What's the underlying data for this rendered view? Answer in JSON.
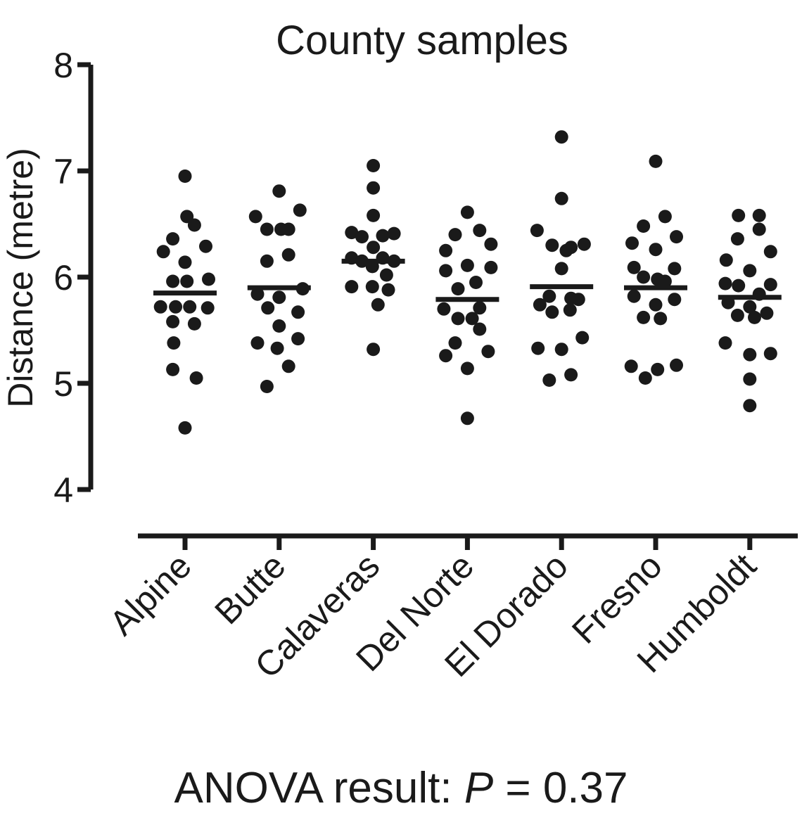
{
  "chart_data": {
    "type": "scatter",
    "title": "County samples",
    "ylabel": "Distance (metre)",
    "xlabel": "",
    "ylim": [
      4,
      8
    ],
    "yticks": [
      4,
      5,
      6,
      7,
      8
    ],
    "grid": false,
    "categories": [
      "Alpine",
      "Butte",
      "Calaveras",
      "Del Norte",
      "El Dorado",
      "Fresno",
      "Humboldt"
    ],
    "series": [
      {
        "category": "Alpine",
        "mean": 5.85,
        "points": [
          [
            0.0,
            6.95
          ],
          [
            0.02,
            6.57
          ],
          [
            0.1,
            6.49
          ],
          [
            -0.13,
            6.36
          ],
          [
            0.22,
            6.29
          ],
          [
            -0.23,
            6.24
          ],
          [
            0.0,
            6.14
          ],
          [
            -0.13,
            5.96
          ],
          [
            0.02,
            5.96
          ],
          [
            0.25,
            5.98
          ],
          [
            -0.26,
            5.72
          ],
          [
            -0.1,
            5.72
          ],
          [
            0.05,
            5.72
          ],
          [
            0.24,
            5.71
          ],
          [
            -0.13,
            5.58
          ],
          [
            0.1,
            5.56
          ],
          [
            -0.12,
            5.38
          ],
          [
            -0.13,
            5.13
          ],
          [
            0.12,
            5.05
          ],
          [
            0.0,
            4.58
          ]
        ]
      },
      {
        "category": "Butte",
        "mean": 5.9,
        "points": [
          [
            0.0,
            6.81
          ],
          [
            -0.25,
            6.57
          ],
          [
            0.22,
            6.63
          ],
          [
            -0.13,
            6.45
          ],
          [
            0.02,
            6.45
          ],
          [
            0.1,
            6.45
          ],
          [
            0.1,
            6.21
          ],
          [
            -0.13,
            6.15
          ],
          [
            -0.23,
            5.84
          ],
          [
            0.0,
            5.81
          ],
          [
            0.25,
            5.89
          ],
          [
            -0.12,
            5.71
          ],
          [
            0.2,
            5.67
          ],
          [
            0.0,
            5.54
          ],
          [
            0.2,
            5.42
          ],
          [
            -0.23,
            5.38
          ],
          [
            -0.02,
            5.33
          ],
          [
            0.1,
            5.16
          ],
          [
            -0.13,
            4.97
          ]
        ]
      },
      {
        "category": "Calaveras",
        "mean": 6.15,
        "points": [
          [
            0.0,
            7.05
          ],
          [
            0.0,
            6.84
          ],
          [
            0.0,
            6.58
          ],
          [
            -0.23,
            6.42
          ],
          [
            -0.12,
            6.38
          ],
          [
            0.1,
            6.39
          ],
          [
            0.22,
            6.41
          ],
          [
            0.0,
            6.28
          ],
          [
            -0.23,
            6.18
          ],
          [
            -0.12,
            6.15
          ],
          [
            0.1,
            6.18
          ],
          [
            0.22,
            6.15
          ],
          [
            -0.01,
            6.1
          ],
          [
            0.14,
            6.02
          ],
          [
            -0.23,
            5.91
          ],
          [
            -0.01,
            5.91
          ],
          [
            0.16,
            5.88
          ],
          [
            0.05,
            5.74
          ],
          [
            0.0,
            5.32
          ]
        ]
      },
      {
        "category": "Del Norte",
        "mean": 5.79,
        "points": [
          [
            0.0,
            6.61
          ],
          [
            -0.13,
            6.4
          ],
          [
            0.13,
            6.44
          ],
          [
            0.25,
            6.31
          ],
          [
            -0.23,
            6.25
          ],
          [
            0.0,
            6.11
          ],
          [
            -0.23,
            6.06
          ],
          [
            0.25,
            6.09
          ],
          [
            -0.1,
            5.89
          ],
          [
            0.09,
            5.95
          ],
          [
            -0.25,
            5.7
          ],
          [
            0.13,
            5.71
          ],
          [
            -0.1,
            5.61
          ],
          [
            0.05,
            5.61
          ],
          [
            0.13,
            5.51
          ],
          [
            -0.13,
            5.38
          ],
          [
            0.22,
            5.3
          ],
          [
            -0.23,
            5.26
          ],
          [
            0.0,
            5.14
          ],
          [
            0.0,
            4.67
          ]
        ]
      },
      {
        "category": "El Dorado",
        "mean": 5.91,
        "points": [
          [
            0.0,
            7.32
          ],
          [
            0.0,
            6.74
          ],
          [
            -0.26,
            6.44
          ],
          [
            -0.1,
            6.3
          ],
          [
            0.1,
            6.28
          ],
          [
            0.24,
            6.31
          ],
          [
            0.05,
            6.25
          ],
          [
            0.0,
            6.08
          ],
          [
            -0.13,
            5.82
          ],
          [
            0.1,
            5.8
          ],
          [
            0.18,
            5.79
          ],
          [
            -0.23,
            5.74
          ],
          [
            0.09,
            5.69
          ],
          [
            -0.1,
            5.67
          ],
          [
            0.22,
            5.43
          ],
          [
            -0.25,
            5.33
          ],
          [
            0.0,
            5.32
          ],
          [
            0.1,
            5.08
          ],
          [
            -0.13,
            5.03
          ]
        ]
      },
      {
        "category": "Fresno",
        "mean": 5.9,
        "points": [
          [
            0.0,
            7.09
          ],
          [
            0.1,
            6.57
          ],
          [
            -0.13,
            6.48
          ],
          [
            0.22,
            6.38
          ],
          [
            -0.25,
            6.32
          ],
          [
            0.0,
            6.26
          ],
          [
            -0.23,
            6.09
          ],
          [
            0.2,
            6.08
          ],
          [
            -0.13,
            6.0
          ],
          [
            0.02,
            5.98
          ],
          [
            0.1,
            5.96
          ],
          [
            -0.23,
            5.82
          ],
          [
            0.2,
            5.79
          ],
          [
            0.0,
            5.74
          ],
          [
            -0.13,
            5.62
          ],
          [
            0.05,
            5.61
          ],
          [
            0.22,
            5.17
          ],
          [
            -0.26,
            5.16
          ],
          [
            0.02,
            5.13
          ],
          [
            -0.11,
            5.05
          ]
        ]
      },
      {
        "category": "Humboldt",
        "mean": 5.81,
        "points": [
          [
            -0.12,
            6.58
          ],
          [
            0.1,
            6.58
          ],
          [
            -0.13,
            6.36
          ],
          [
            0.1,
            6.45
          ],
          [
            0.22,
            6.24
          ],
          [
            -0.25,
            6.16
          ],
          [
            0.0,
            6.06
          ],
          [
            -0.26,
            5.94
          ],
          [
            -0.12,
            5.92
          ],
          [
            0.22,
            5.93
          ],
          [
            0.1,
            5.84
          ],
          [
            -0.23,
            5.76
          ],
          [
            0.0,
            5.72
          ],
          [
            -0.13,
            5.64
          ],
          [
            0.05,
            5.62
          ],
          [
            0.18,
            5.66
          ],
          [
            -0.26,
            5.38
          ],
          [
            0.0,
            5.27
          ],
          [
            0.22,
            5.28
          ],
          [
            0.0,
            5.04
          ],
          [
            0.0,
            4.79
          ]
        ]
      }
    ]
  },
  "footer": {
    "prefix": "ANOVA result: ",
    "p_symbol": "P",
    "suffix": " = 0.37"
  }
}
